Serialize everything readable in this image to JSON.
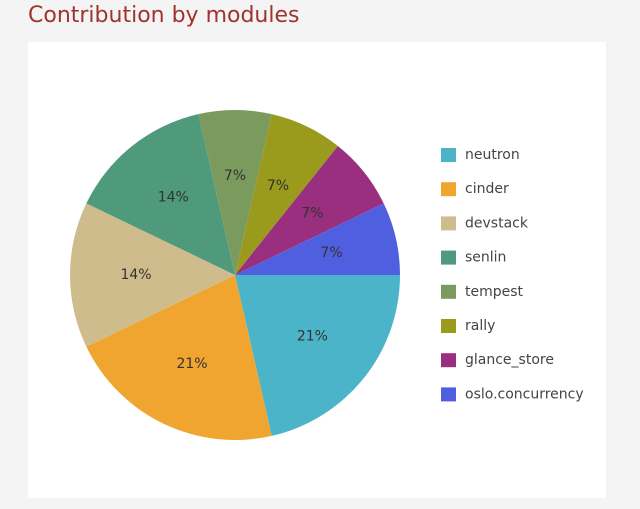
{
  "chart_data": {
    "type": "pie",
    "title": "Contribution by modules",
    "categories": [
      "neutron",
      "cinder",
      "devstack",
      "senlin",
      "tempest",
      "rally",
      "glance_store",
      "oslo.concurrency"
    ],
    "values": [
      21,
      21,
      14,
      14,
      7,
      7,
      7,
      7
    ],
    "value_labels": [
      "21%",
      "21%",
      "14%",
      "14%",
      "7%",
      "7%",
      "7%",
      "7%"
    ],
    "colors": [
      "#4bb4c9",
      "#f0a531",
      "#cfbc8c",
      "#4e9a7b",
      "#7b9a5e",
      "#9a9a1c",
      "#9a2f80",
      "#4f5fe0"
    ],
    "legend": "right"
  }
}
